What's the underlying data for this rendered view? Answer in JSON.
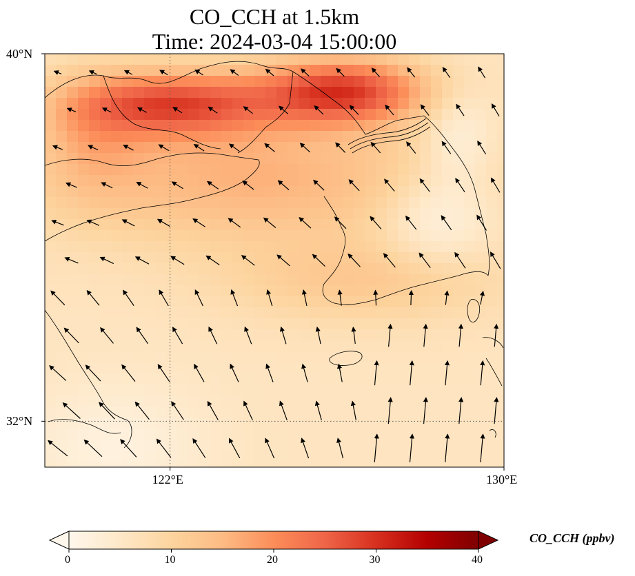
{
  "title": {
    "line1": "CO_CCH at 1.5km",
    "line2": "Time: 2024-03-04 15:00:00"
  },
  "map": {
    "lon_range": [
      119,
      130
    ],
    "lat_range": [
      31,
      40
    ],
    "gridlines_style": "dotted",
    "lat_ticks": [
      {
        "value": 40,
        "label": "40°N"
      },
      {
        "value": 32,
        "label": "32°N"
      }
    ],
    "lon_ticks": [
      {
        "value": 122,
        "label": "122°E"
      },
      {
        "value": 130,
        "label": "130°E"
      }
    ],
    "field": "CO_CCH concentration",
    "overlay": "wind vectors (black arrows) and coastlines"
  },
  "colorbar": {
    "label": "CO_CCH (ppbv)",
    "cmap": "OrRd",
    "min": 0,
    "max": 40,
    "extend": "both",
    "ticks": [
      {
        "value": 0,
        "label": "0"
      },
      {
        "value": 10,
        "label": "10"
      },
      {
        "value": 20,
        "label": "20"
      },
      {
        "value": 30,
        "label": "30"
      },
      {
        "value": 40,
        "label": "40"
      }
    ],
    "colors": [
      "#fff7ec",
      "#fee8c8",
      "#fdd49e",
      "#fdbb84",
      "#fc8d59",
      "#ef6548",
      "#d7301f",
      "#b30000",
      "#7f0000"
    ]
  }
}
